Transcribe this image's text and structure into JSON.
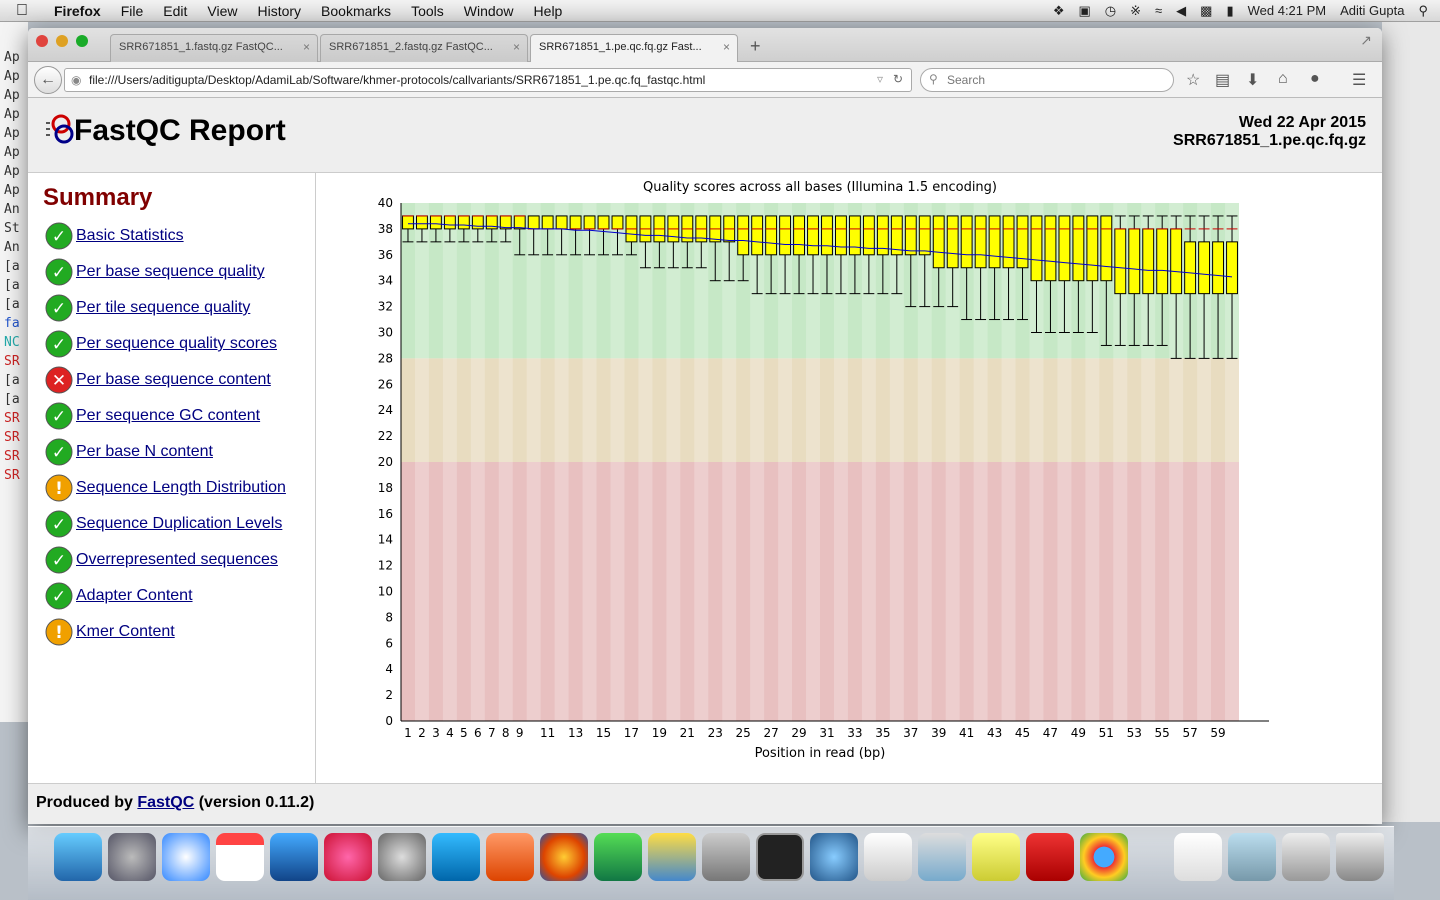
{
  "menubar": {
    "app": "Firefox",
    "items": [
      "File",
      "Edit",
      "View",
      "History",
      "Bookmarks",
      "Tools",
      "Window",
      "Help"
    ],
    "clock": "Wed 4:21 PM",
    "user": "Aditi Gupta"
  },
  "bg_terminal_lines": [
    "Ap",
    "Ap",
    "Ap",
    "Ap",
    "Ap",
    "Ap",
    "Ap",
    "Ap",
    "An",
    "St",
    "An",
    "[a",
    "[a",
    "[a",
    "fa",
    "NC",
    "SR",
    "[a",
    "[a",
    "SR",
    "SR",
    "SR",
    "SR"
  ],
  "tabs": [
    {
      "label": "SRR671851_1.fastq.gz FastQC..."
    },
    {
      "label": "SRR671851_2.fastq.gz FastQC..."
    },
    {
      "label": "SRR671851_1.pe.qc.fq.gz Fast...",
      "active": true
    }
  ],
  "url": "file:///Users/aditigupta/Desktop/AdamiLab/Software/khmer-protocols/callvariants/SRR671851_1.pe.qc.fq_fastqc.html",
  "search_placeholder": "Search",
  "report": {
    "title": "FastQC Report",
    "date": "Wed 22 Apr 2015",
    "filename": "SRR671851_1.pe.qc.fq.gz",
    "summary_heading": "Summary",
    "modules": [
      {
        "label": "Basic Statistics",
        "status": "pass"
      },
      {
        "label": "Per base sequence quality",
        "status": "pass"
      },
      {
        "label": "Per tile sequence quality",
        "status": "pass"
      },
      {
        "label": "Per sequence quality scores",
        "status": "pass"
      },
      {
        "label": "Per base sequence content",
        "status": "fail"
      },
      {
        "label": "Per sequence GC content",
        "status": "pass"
      },
      {
        "label": "Per base N content",
        "status": "pass"
      },
      {
        "label": "Sequence Length Distribution",
        "status": "warn"
      },
      {
        "label": "Sequence Duplication Levels",
        "status": "pass"
      },
      {
        "label": "Overrepresented sequences",
        "status": "pass"
      },
      {
        "label": "Adapter Content",
        "status": "pass"
      },
      {
        "label": "Kmer Content",
        "status": "warn"
      }
    ],
    "footer_prefix": "Produced by ",
    "footer_link": "FastQC",
    "footer_suffix": " (version 0.11.2)"
  },
  "colors": {
    "pass": "#22aa22",
    "fail": "#dd2222",
    "warn": "#f0a000",
    "box": "#ffff00",
    "good_zone": "#c6e8c6",
    "ok_zone": "#e8dcc0",
    "bad_zone": "#e8c0c0"
  },
  "chart_data": {
    "type": "boxplot",
    "title": "Quality scores across all bases (Illumina 1.5 encoding)",
    "xlabel": "Position in read (bp)",
    "ylabel": "",
    "ylim": [
      0,
      40
    ],
    "yticks": [
      0,
      2,
      4,
      6,
      8,
      10,
      12,
      14,
      16,
      18,
      20,
      22,
      24,
      26,
      28,
      30,
      32,
      34,
      36,
      38,
      40
    ],
    "x_tick_labels": [
      "1",
      "2",
      "3",
      "4",
      "5",
      "6",
      "7",
      "8",
      "9",
      "11",
      "13",
      "15",
      "17",
      "19",
      "21",
      "23",
      "25",
      "27",
      "29",
      "31",
      "33",
      "35",
      "37",
      "39",
      "41",
      "43",
      "45",
      "47",
      "49",
      "51",
      "53",
      "55",
      "57",
      "59"
    ],
    "zones": [
      {
        "from": 28,
        "to": 40,
        "label": "good"
      },
      {
        "from": 20,
        "to": 28,
        "label": "ok"
      },
      {
        "from": 0,
        "to": 20,
        "label": "bad"
      }
    ],
    "positions": [
      1,
      2,
      3,
      4,
      5,
      6,
      7,
      8,
      9,
      10,
      11,
      12,
      13,
      14,
      15,
      16,
      17,
      18,
      19,
      20,
      21,
      22,
      23,
      24,
      25,
      26,
      27,
      28,
      29,
      30,
      31,
      32,
      33,
      34,
      35,
      36,
      37,
      38,
      39,
      40,
      41,
      42,
      43,
      44,
      45,
      46,
      47,
      48,
      49,
      50,
      51,
      52,
      53,
      54,
      55,
      56,
      57,
      58,
      59,
      60
    ],
    "median": [
      39,
      39,
      39,
      39,
      39,
      39,
      39,
      39,
      39,
      38,
      38,
      38,
      38,
      38,
      38,
      38,
      38,
      38,
      38,
      38,
      38,
      38,
      38,
      38,
      38,
      38,
      38,
      38,
      38,
      38,
      38,
      38,
      38,
      38,
      38,
      38,
      38,
      38,
      38,
      38,
      38,
      38,
      38,
      38,
      38,
      38,
      38,
      38,
      38,
      38,
      38,
      38,
      38,
      38,
      38,
      38,
      38,
      38,
      38,
      38
    ],
    "q1": [
      38,
      38,
      38,
      38,
      38,
      38,
      38,
      38,
      38,
      38,
      38,
      38,
      38,
      38,
      38,
      38,
      37,
      37,
      37,
      37,
      37,
      37,
      37,
      37,
      36,
      36,
      36,
      36,
      36,
      36,
      36,
      36,
      36,
      36,
      36,
      36,
      36,
      36,
      35,
      35,
      35,
      35,
      35,
      35,
      35,
      34,
      34,
      34,
      34,
      34,
      34,
      33,
      33,
      33,
      33,
      33,
      33,
      33,
      33,
      33
    ],
    "q3": [
      39,
      39,
      39,
      39,
      39,
      39,
      39,
      39,
      39,
      39,
      39,
      39,
      39,
      39,
      39,
      39,
      39,
      39,
      39,
      39,
      39,
      39,
      39,
      39,
      39,
      39,
      39,
      39,
      39,
      39,
      39,
      39,
      39,
      39,
      39,
      39,
      39,
      39,
      39,
      39,
      39,
      39,
      39,
      39,
      39,
      39,
      39,
      39,
      39,
      39,
      39,
      38,
      38,
      38,
      38,
      38,
      37,
      37,
      37,
      37
    ],
    "lower_whisker": [
      37,
      37,
      37,
      37,
      37,
      37,
      37,
      37,
      36,
      36,
      36,
      36,
      36,
      36,
      36,
      36,
      36,
      35,
      35,
      35,
      35,
      35,
      34,
      34,
      34,
      33,
      33,
      33,
      33,
      33,
      33,
      33,
      33,
      33,
      33,
      33,
      32,
      32,
      32,
      32,
      31,
      31,
      31,
      31,
      31,
      30,
      30,
      30,
      30,
      30,
      29,
      29,
      29,
      29,
      29,
      28,
      28,
      28,
      28,
      28
    ],
    "upper_whisker": [
      39,
      39,
      39,
      39,
      39,
      39,
      39,
      39,
      39,
      39,
      39,
      39,
      39,
      39,
      39,
      39,
      39,
      39,
      39,
      39,
      39,
      39,
      39,
      39,
      39,
      39,
      39,
      39,
      39,
      39,
      39,
      39,
      39,
      39,
      39,
      39,
      39,
      39,
      39,
      39,
      39,
      39,
      39,
      39,
      39,
      39,
      39,
      39,
      39,
      39,
      39,
      39,
      39,
      39,
      39,
      39,
      39,
      39,
      39,
      39
    ],
    "mean": [
      38.4,
      38.4,
      38.4,
      38.3,
      38.3,
      38.2,
      38.2,
      38.1,
      38.1,
      38.0,
      38.0,
      38.0,
      37.9,
      37.9,
      37.8,
      37.7,
      37.6,
      37.5,
      37.5,
      37.4,
      37.3,
      37.3,
      37.2,
      37.1,
      37.1,
      37.0,
      36.9,
      36.8,
      36.8,
      36.7,
      36.7,
      36.6,
      36.6,
      36.5,
      36.5,
      36.4,
      36.3,
      36.3,
      36.2,
      36.1,
      36.0,
      36.0,
      35.9,
      35.8,
      35.7,
      35.6,
      35.5,
      35.4,
      35.3,
      35.2,
      35.1,
      35.0,
      34.9,
      34.8,
      34.8,
      34.7,
      34.6,
      34.5,
      34.4,
      34.3
    ]
  }
}
